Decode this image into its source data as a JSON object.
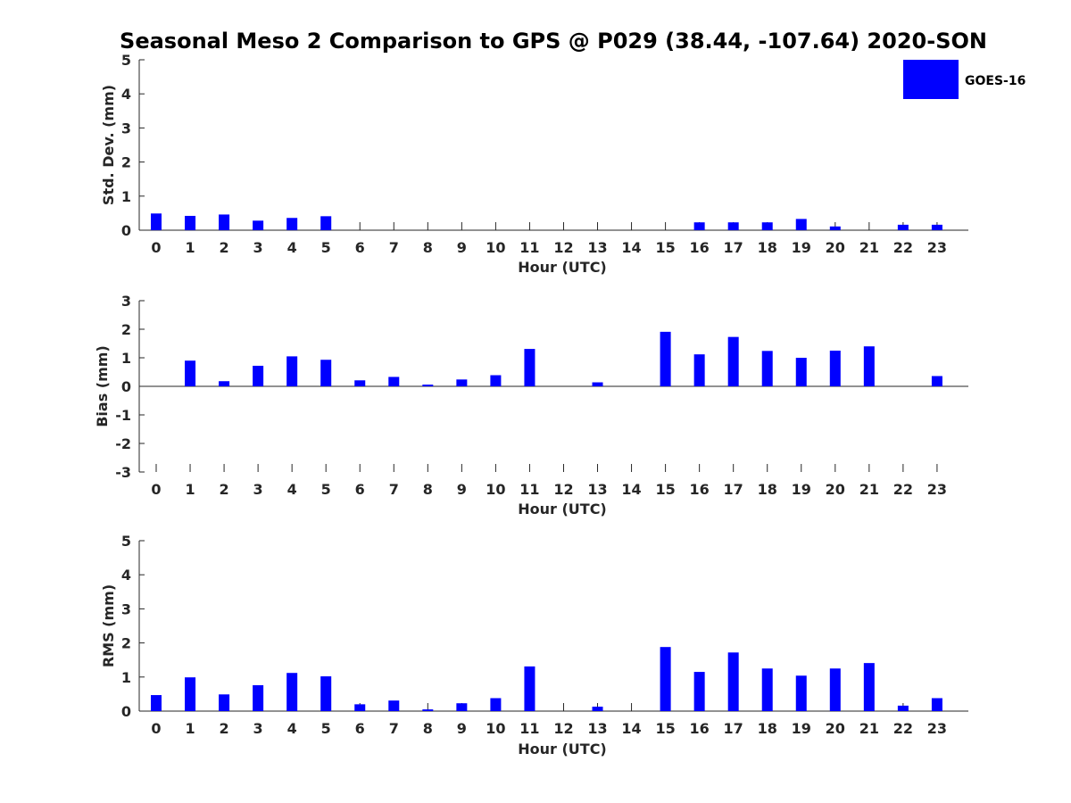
{
  "figure": {
    "title": "Seasonal Meso 2 Comparison to GPS @ P029 (38.44, -107.64) 2020-SON",
    "legend": {
      "label": "GOES-16",
      "color": "#0000FF",
      "placement": "top-right"
    }
  },
  "chart_data": [
    {
      "type": "bar",
      "categories": [
        "0",
        "1",
        "2",
        "3",
        "4",
        "5",
        "6",
        "7",
        "8",
        "9",
        "10",
        "11",
        "12",
        "13",
        "14",
        "15",
        "16",
        "17",
        "18",
        "19",
        "20",
        "21",
        "22",
        "23"
      ],
      "series": [
        {
          "name": "GOES-16",
          "color": "#0000FF",
          "values": [
            0.49,
            0.42,
            0.46,
            0.28,
            0.36,
            0.41,
            0,
            0,
            0,
            0,
            0,
            0,
            0,
            0,
            0,
            0,
            0.23,
            0.23,
            0.23,
            0.33,
            0.11,
            0,
            0.16,
            0.16
          ]
        }
      ],
      "xlabel": "Hour (UTC)",
      "ylabel": "Std. Dev. (mm)",
      "ylim": [
        0,
        5
      ],
      "yticks": [
        "0",
        "1",
        "2",
        "3",
        "4",
        "5"
      ],
      "grid": false
    },
    {
      "type": "bar",
      "categories": [
        "0",
        "1",
        "2",
        "3",
        "4",
        "5",
        "6",
        "7",
        "8",
        "9",
        "10",
        "11",
        "12",
        "13",
        "14",
        "15",
        "16",
        "17",
        "18",
        "19",
        "20",
        "21",
        "22",
        "23"
      ],
      "series": [
        {
          "name": "GOES-16",
          "color": "#0000FF",
          "values": [
            0,
            0.9,
            0.18,
            0.72,
            1.05,
            0.93,
            0.21,
            0.33,
            0.06,
            0.24,
            0.39,
            1.31,
            0,
            0.14,
            0,
            1.91,
            1.12,
            1.73,
            1.24,
            1.0,
            1.25,
            1.4,
            0,
            0.36
          ]
        }
      ],
      "xlabel": "Hour (UTC)",
      "ylabel": "Bias (mm)",
      "ylim": [
        -3,
        3
      ],
      "yticks": [
        "-3",
        "-2",
        "-1",
        "0",
        "1",
        "2",
        "3"
      ],
      "grid": false
    },
    {
      "type": "bar",
      "categories": [
        "0",
        "1",
        "2",
        "3",
        "4",
        "5",
        "6",
        "7",
        "8",
        "9",
        "10",
        "11",
        "12",
        "13",
        "14",
        "15",
        "16",
        "17",
        "18",
        "19",
        "20",
        "21",
        "22",
        "23"
      ],
      "series": [
        {
          "name": "GOES-16",
          "color": "#0000FF",
          "values": [
            0.47,
            0.99,
            0.49,
            0.76,
            1.12,
            1.02,
            0.2,
            0.31,
            0.05,
            0.23,
            0.38,
            1.31,
            0,
            0.13,
            0,
            1.88,
            1.15,
            1.72,
            1.25,
            1.04,
            1.25,
            1.41,
            0.16,
            0.38
          ]
        }
      ],
      "xlabel": "Hour (UTC)",
      "ylabel": "RMS (mm)",
      "ylim": [
        0,
        5
      ],
      "yticks": [
        "0",
        "1",
        "2",
        "3",
        "4",
        "5"
      ],
      "grid": false
    }
  ]
}
